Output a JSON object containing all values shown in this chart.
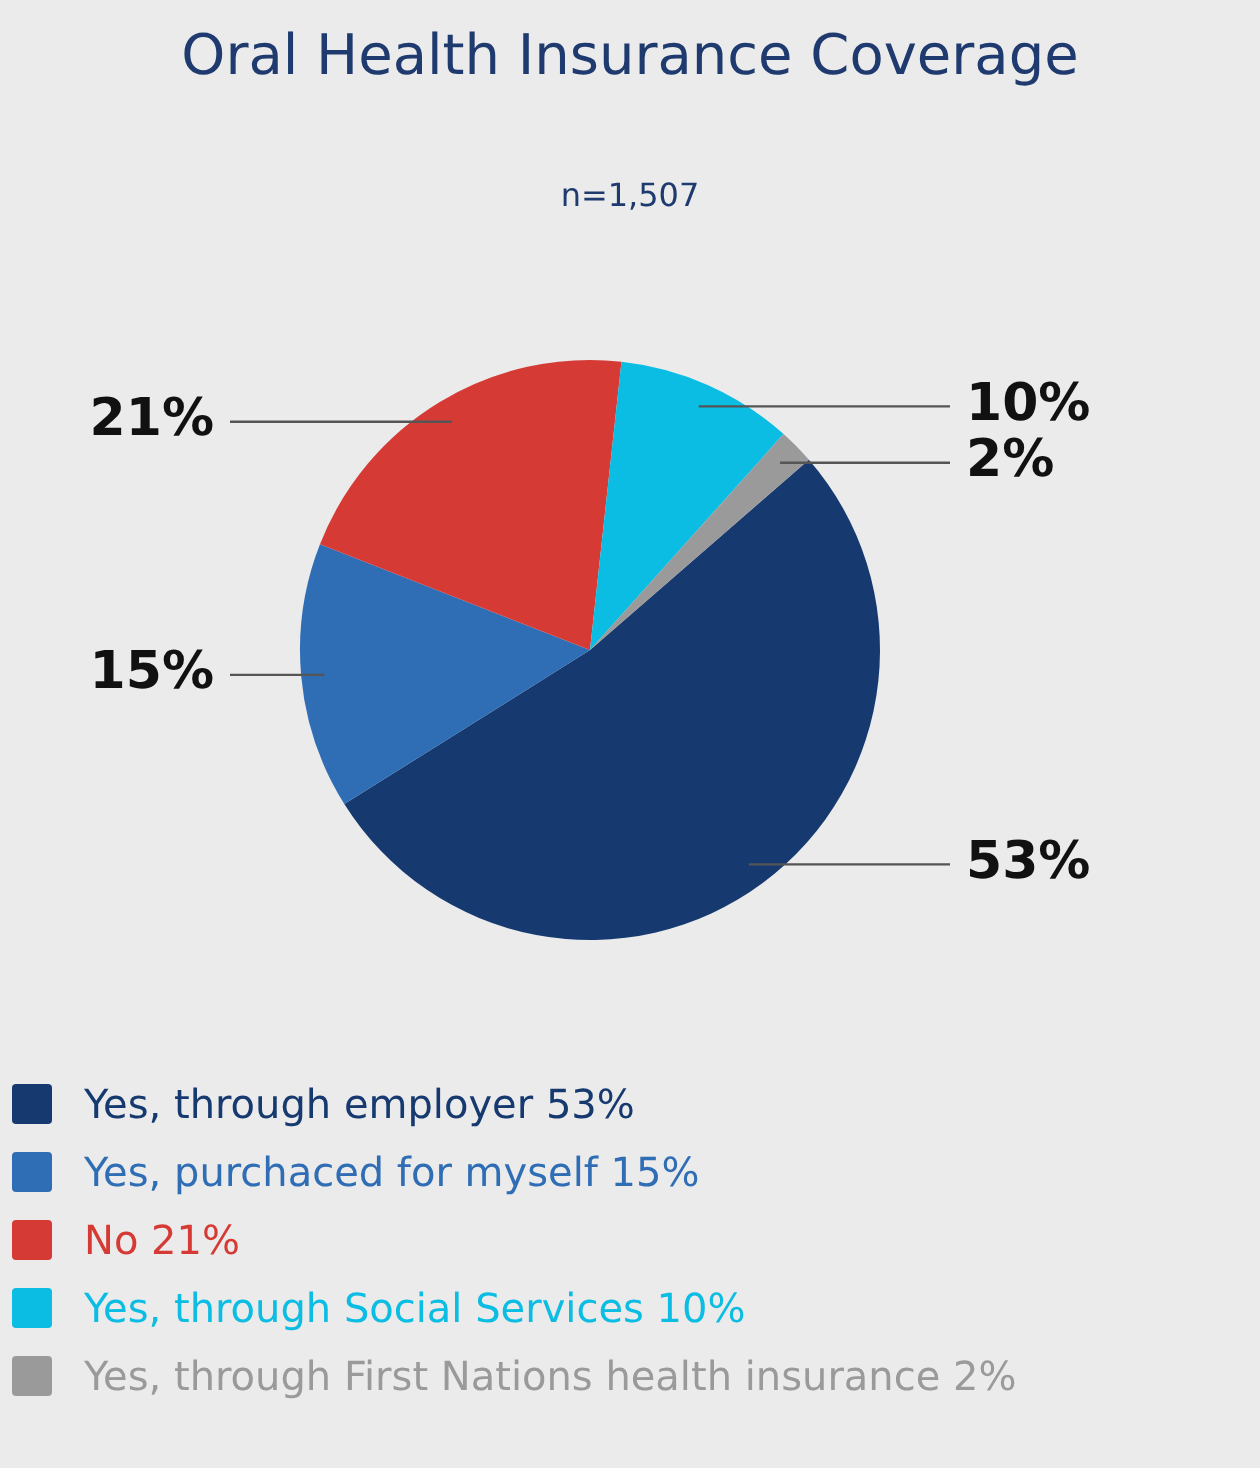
{
  "chart_data": {
    "type": "pie",
    "title": "Oral Health Insurance Coverage",
    "subtitle": "n=1,507",
    "categories": [
      "Yes, through employer",
      "Yes, purchaced for myself",
      "No",
      "Yes, through Social Services",
      "Yes, through First Nations health insurance"
    ],
    "values": [
      53,
      15,
      21,
      10,
      2
    ],
    "value_labels": [
      "53%",
      "15%",
      "21%",
      "10%",
      "2%"
    ],
    "colors": [
      "#163a70",
      "#2f6db5",
      "#d63a35",
      "#0bbde3",
      "#9a9a9a"
    ],
    "legend": "bottom left"
  }
}
